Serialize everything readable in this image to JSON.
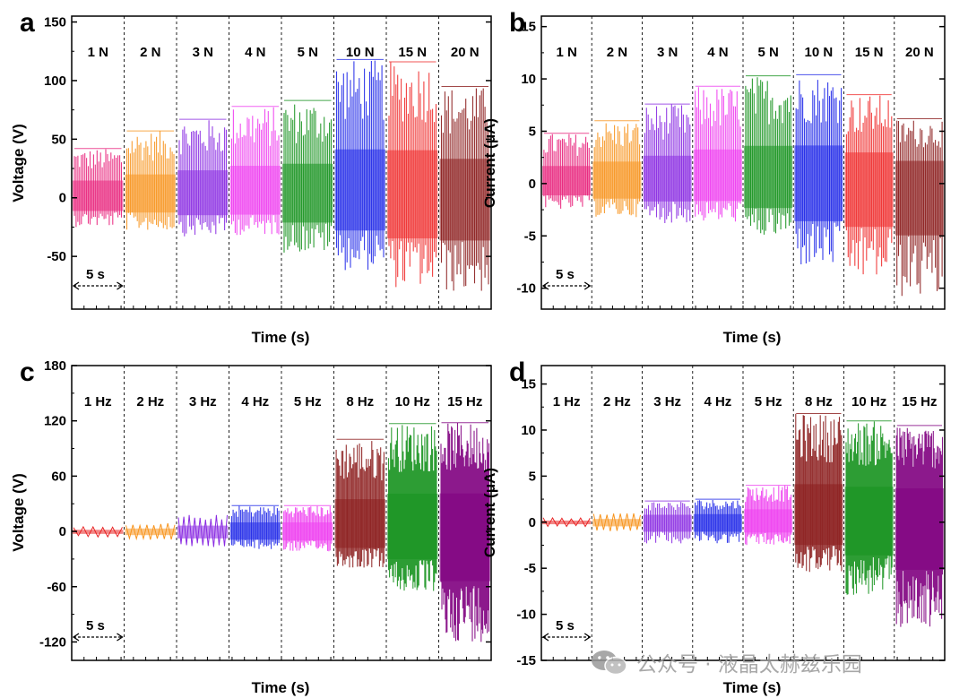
{
  "figure": {
    "watermark": "公众号 · 液晶太赫兹乐园",
    "colors": [
      "#e8247c",
      "#f7941d",
      "#8a2be2",
      "#ee3df0",
      "#16921e",
      "#1f28e8",
      "#ef2b2b",
      "#8b1c1c"
    ],
    "colors_freq": [
      "#e82222",
      "#f7941d",
      "#8a2be2",
      "#1f28e8",
      "#ee3df0",
      "#8b1c1c",
      "#16921e",
      "#800080"
    ]
  },
  "chart_data": [
    {
      "panel": "a",
      "type": "line",
      "title": "",
      "xlabel": "Time (s)",
      "ylabel": "Voltage (V)",
      "ylim": [
        -95,
        155
      ],
      "yticks": [
        -50,
        0,
        50,
        100,
        150
      ],
      "segments": [
        "1 N",
        "2 N",
        "3 N",
        "4 N",
        "5 N",
        "10 N",
        "15 N",
        "20 N"
      ],
      "series": [
        {
          "name": "1 N",
          "peak_max": 42,
          "peak_min": -25
        },
        {
          "name": "2 N",
          "peak_max": 57,
          "peak_min": -28
        },
        {
          "name": "3 N",
          "peak_max": 67,
          "peak_min": -33
        },
        {
          "name": "4 N",
          "peak_max": 78,
          "peak_min": -32
        },
        {
          "name": "5 N",
          "peak_max": 83,
          "peak_min": -47
        },
        {
          "name": "10 N",
          "peak_max": 118,
          "peak_min": -62
        },
        {
          "name": "15 N",
          "peak_max": 116,
          "peak_min": -77
        },
        {
          "name": "20 N",
          "peak_max": 95,
          "peak_min": -81
        }
      ],
      "scale_bar": "5 s"
    },
    {
      "panel": "b",
      "type": "line",
      "title": "",
      "xlabel": "Time (s)",
      "ylabel": "Current (μA)",
      "ylim": [
        -12,
        16
      ],
      "yticks": [
        -10,
        -5,
        0,
        5,
        10,
        15
      ],
      "segments": [
        "1 N",
        "2 N",
        "3 N",
        "4 N",
        "5 N",
        "10 N",
        "15 N",
        "20 N"
      ],
      "series": [
        {
          "name": "1 N",
          "peak_max": 4.8,
          "peak_min": -2.5
        },
        {
          "name": "2 N",
          "peak_max": 6.0,
          "peak_min": -3.2
        },
        {
          "name": "3 N",
          "peak_max": 7.6,
          "peak_min": -3.8
        },
        {
          "name": "4 N",
          "peak_max": 9.3,
          "peak_min": -3.7
        },
        {
          "name": "5 N",
          "peak_max": 10.3,
          "peak_min": -5.2
        },
        {
          "name": "10 N",
          "peak_max": 10.4,
          "peak_min": -8.0
        },
        {
          "name": "15 N",
          "peak_max": 8.5,
          "peak_min": -9.2
        },
        {
          "name": "20 N",
          "peak_max": 6.2,
          "peak_min": -11.0
        }
      ],
      "scale_bar": "5 s"
    },
    {
      "panel": "c",
      "type": "line",
      "title": "",
      "xlabel": "Time (s)",
      "ylabel": "Voltage (V)",
      "ylim": [
        -140,
        180
      ],
      "yticks": [
        -120,
        -60,
        0,
        60,
        120,
        180
      ],
      "segments": [
        "1 Hz",
        "2 Hz",
        "3 Hz",
        "4 Hz",
        "5 Hz",
        "8 Hz",
        "10 Hz",
        "15 Hz"
      ],
      "series": [
        {
          "name": "1 Hz",
          "peak_max": 5,
          "peak_min": -6
        },
        {
          "name": "2 Hz",
          "peak_max": 9,
          "peak_min": -9
        },
        {
          "name": "3 Hz",
          "peak_max": 18,
          "peak_min": -17
        },
        {
          "name": "4 Hz",
          "peak_max": 28,
          "peak_min": -20
        },
        {
          "name": "5 Hz",
          "peak_max": 28,
          "peak_min": -22
        },
        {
          "name": "8 Hz",
          "peak_max": 100,
          "peak_min": -40
        },
        {
          "name": "10 Hz",
          "peak_max": 117,
          "peak_min": -67
        },
        {
          "name": "15 Hz",
          "peak_max": 118,
          "peak_min": -120
        }
      ],
      "scale_bar": "5 s"
    },
    {
      "panel": "d",
      "type": "line",
      "title": "",
      "xlabel": "Time (s)",
      "ylabel": "Current (μA)",
      "ylim": [
        -15,
        17
      ],
      "yticks": [
        -15,
        -10,
        -5,
        0,
        5,
        10,
        15
      ],
      "segments": [
        "1 Hz",
        "2 Hz",
        "3 Hz",
        "4 Hz",
        "5 Hz",
        "8 Hz",
        "10 Hz",
        "15 Hz"
      ],
      "series": [
        {
          "name": "1 Hz",
          "peak_max": 0.5,
          "peak_min": -0.5
        },
        {
          "name": "2 Hz",
          "peak_max": 1.0,
          "peak_min": -1.0
        },
        {
          "name": "3 Hz",
          "peak_max": 2.3,
          "peak_min": -2.3
        },
        {
          "name": "4 Hz",
          "peak_max": 2.5,
          "peak_min": -2.3
        },
        {
          "name": "5 Hz",
          "peak_max": 4.0,
          "peak_min": -2.5
        },
        {
          "name": "8 Hz",
          "peak_max": 11.8,
          "peak_min": -5.5
        },
        {
          "name": "10 Hz",
          "peak_max": 11.0,
          "peak_min": -8.0
        },
        {
          "name": "15 Hz",
          "peak_max": 10.5,
          "peak_min": -11.5
        }
      ],
      "scale_bar": "5 s"
    }
  ]
}
